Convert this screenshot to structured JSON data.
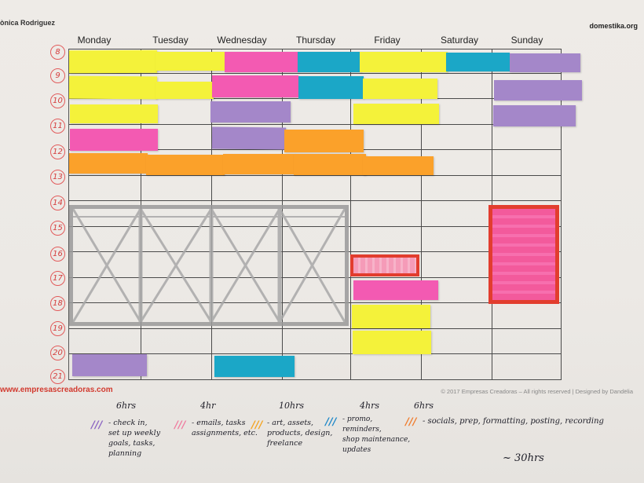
{
  "header": {
    "left_text": "ònica Rodriguez",
    "right_text": "domestika.org"
  },
  "days": [
    "Monday",
    "Tuesday",
    "Wednesday",
    "Thursday",
    "Friday",
    "Saturday",
    "Sunday"
  ],
  "hours": [
    "8",
    "9",
    "10",
    "11",
    "12",
    "13",
    "14",
    "15",
    "16",
    "17",
    "18",
    "19",
    "20",
    "21"
  ],
  "footer": {
    "website": "www.empresascreadoras.com",
    "copyright": "© 2017 Empresas Creadoras – All rights reserved | Designed by Dandëlia"
  },
  "legend": [
    {
      "hours": "6hrs",
      "color": "#8a62c2",
      "text_lines": [
        "- check in,",
        "set up weekly",
        "goals, tasks,",
        "planning"
      ]
    },
    {
      "hours": "4hr",
      "color": "#f07a9e",
      "text_lines": [
        "- emails, tasks",
        "assignments, etc."
      ]
    },
    {
      "hours": "10hrs",
      "color": "#f4a21c",
      "text_lines": [
        "- art, assets,",
        "products, design,",
        "freelance"
      ]
    },
    {
      "hours": "4hrs",
      "color": "#1a86c8",
      "text_lines": [
        "- promo, reminders,",
        "shop maintenance,",
        "updates"
      ]
    },
    {
      "hours": "6hrs",
      "color": "#f07a2a",
      "text_lines": [
        "- socials, prep, formatting, posting, recording"
      ]
    }
  ],
  "total": "~ 30hrs",
  "colors": {
    "yellow": "#f4f23a",
    "pink": "#f35ab2",
    "blue": "#1ba7c7",
    "violet": "#a487c9",
    "orange": "#fba12a",
    "red_outline": "#e23d2e",
    "hour_circle": "#e25b5b"
  }
}
